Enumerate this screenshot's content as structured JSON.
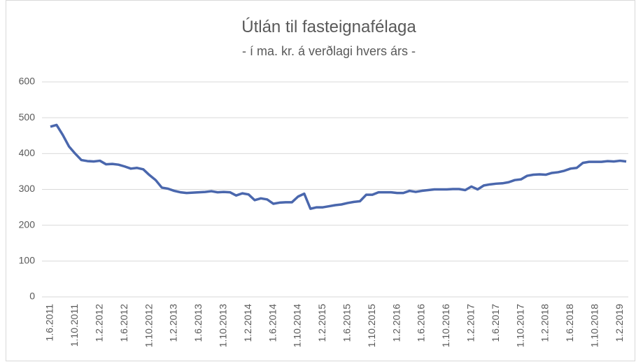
{
  "chart_data": {
    "type": "line",
    "title": "Útlán til fasteignafélaga",
    "subtitle": "- í ma. kr. á verðlagi hvers árs -",
    "categories": [
      "1.6.2011",
      null,
      null,
      null,
      "1.10.2011",
      null,
      null,
      null,
      "1.2.2012",
      null,
      null,
      null,
      "1.6.2012",
      null,
      null,
      null,
      "1.10.2012",
      null,
      null,
      null,
      "1.2.2013",
      null,
      null,
      null,
      "1.6.2013",
      null,
      null,
      null,
      "1.10.2013",
      null,
      null,
      null,
      "1.2.2014",
      null,
      null,
      null,
      "1.6.2014",
      null,
      null,
      null,
      "1.10.2014",
      null,
      null,
      null,
      "1.2.2015",
      null,
      null,
      null,
      "1.6.2015",
      null,
      null,
      null,
      "1.10.2015",
      null,
      null,
      null,
      "1.2.2016",
      null,
      null,
      null,
      "1.6.2016",
      null,
      null,
      null,
      "1.10.2016",
      null,
      null,
      null,
      "1.2.2017",
      null,
      null,
      null,
      "1.6.2017",
      null,
      null,
      null,
      "1.10.2017",
      null,
      null,
      null,
      "1.2.2018",
      null,
      null,
      null,
      "1.6.2018",
      null,
      null,
      null,
      "1.10.2018",
      null,
      null,
      null,
      "1.2.2019",
      null
    ],
    "values": [
      475,
      480,
      452,
      420,
      400,
      382,
      379,
      378,
      380,
      370,
      371,
      369,
      364,
      358,
      360,
      356,
      340,
      326,
      305,
      302,
      296,
      292,
      290,
      291,
      292,
      293,
      295,
      292,
      293,
      292,
      283,
      289,
      286,
      270,
      275,
      272,
      260,
      263,
      264,
      264,
      280,
      288,
      246,
      250,
      250,
      253,
      256,
      258,
      262,
      265,
      267,
      285,
      285,
      292,
      292,
      292,
      290,
      290,
      296,
      293,
      296,
      298,
      300,
      300,
      300,
      301,
      301,
      298,
      308,
      300,
      311,
      314,
      316,
      317,
      320,
      326,
      328,
      338,
      341,
      342,
      341,
      346,
      348,
      352,
      358,
      360,
      374,
      377,
      377,
      377,
      379,
      378,
      380,
      378
    ],
    "color": "#4a67ad",
    "ylim": [
      0,
      600
    ],
    "yticks": [
      0,
      100,
      200,
      300,
      400,
      500,
      600
    ],
    "grid": true
  }
}
